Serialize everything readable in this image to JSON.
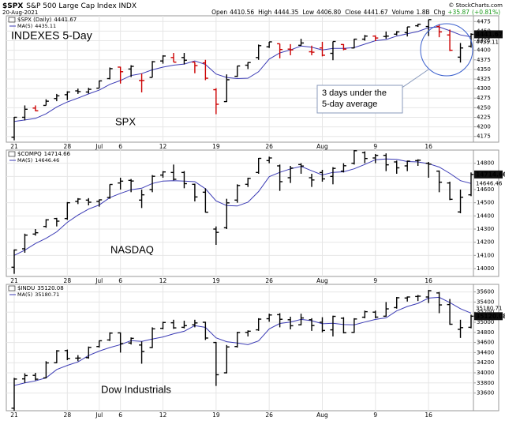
{
  "header": {
    "symbol": "$SPX",
    "name": "S&P 500 Large Cap Index INDX",
    "date": "20-Aug-2021",
    "credit": "© StockCharts.com",
    "stats": [
      {
        "label": "Open",
        "value": 4410.56
      },
      {
        "label": "High",
        "value": 4444.35
      },
      {
        "label": "Low",
        "value": {
          "value": 4406.8,
          "label": "4406.80"
        }
      },
      {
        "label": "Close",
        "value": 4441.67
      },
      {
        "label": "Volume",
        "value": {
          "value": 1800000000,
          "label": "1.8B"
        }
      },
      {
        "label": "Chg",
        "value": {
          "value": 35.87,
          "label": "+35.87"
        },
        "pct": {
          "value": 0.81,
          "label": "(+0.81%)"
        },
        "color": "#1a9a1a"
      }
    ]
  },
  "chart_data": [
    {
      "type": "ohlc",
      "symbol": "$SPX (Daily)",
      "categories": [
        "21",
        null,
        null,
        null,
        null,
        "28",
        null,
        null,
        "Jul",
        null,
        "6",
        null,
        null,
        null,
        "12",
        null,
        null,
        null,
        null,
        "19",
        null,
        null,
        null,
        null,
        "26",
        null,
        null,
        null,
        null,
        "Aug",
        null,
        null,
        null,
        null,
        "9",
        null,
        null,
        null,
        null,
        "16",
        null,
        null,
        null,
        null
      ],
      "open": [
        4173,
        4225,
        4249,
        4256,
        4274,
        4284,
        4294,
        4291,
        4301,
        4326,
        4356,
        4351,
        4321,
        4329,
        4372,
        4381,
        4381,
        4369,
        4367,
        4297,
        4266,
        4332,
        4361,
        4381,
        4409,
        4417,
        4403,
        4413,
        4396,
        4406,
        4392,
        4415,
        4406,
        4429,
        4437,
        4436,
        4442,
        4446,
        4464,
        4462,
        4462,
        4440,
        4382,
        4410.56
      ],
      "high": [
        4226,
        4256,
        4256,
        4272,
        4286,
        4293,
        4300,
        4302,
        4321,
        4355,
        4357,
        4361,
        4339,
        4372,
        4387,
        4393,
        4393,
        4369,
        4375,
        4301,
        4337,
        4359,
        4369,
        4415,
        4422,
        4417,
        4416,
        4430,
        4412,
        4422,
        4423,
        4416,
        4430,
        4440,
        4439,
        4449,
        4450,
        4461,
        4469,
        4480,
        4468,
        4454,
        4419,
        4444.35
      ],
      "low": [
        4165,
        4217,
        4241,
        4256,
        4267,
        4270,
        4286,
        4287,
        4301,
        4324,
        4313,
        4330,
        4290,
        4329,
        4365,
        4369,
        4363,
        4340,
        4322,
        4233,
        4265,
        4330,
        4351,
        4375,
        4406,
        4379,
        4387,
        4412,
        4387,
        4384,
        4374,
        4400,
        4405,
        4425,
        4424,
        4430,
        4439,
        4436,
        4461,
        4437,
        4434,
        4398,
        4368,
        4406.8
      ],
      "close": [
        4225,
        4246,
        4242,
        4267,
        4281,
        4291,
        4292,
        4298,
        4320,
        4352,
        4344,
        4358,
        4321,
        4370,
        4385,
        4369,
        4374,
        4360,
        4327,
        4259,
        4323,
        4359,
        4368,
        4412,
        4422,
        4402,
        4401,
        4419,
        4395,
        4387,
        4423,
        4403,
        4429,
        4437,
        4432,
        4437,
        4448,
        4461,
        4468,
        4480,
        4448,
        4400,
        4406,
        4441.67
      ],
      "up_color": "#000000",
      "down_color": "#cc0000",
      "ma": {
        "name": "MA(5)",
        "color": "#3b3bb5",
        "values": [
          4214,
          4218,
          4222,
          4234,
          4252,
          4265,
          4275,
          4286,
          4296,
          4311,
          4321,
          4334,
          4339,
          4349,
          4356,
          4361,
          4364,
          4372,
          4363,
          4338,
          4329,
          4326,
          4327,
          4344,
          4377,
          4393,
          4401,
          4411,
          4408,
          4401,
          4405,
          4405,
          4407,
          4416,
          4425,
          4428,
          4437,
          4443,
          4449,
          4459,
          4461,
          4451,
          4440,
          4435.11
        ]
      },
      "ylim": [
        4160,
        4490
      ],
      "yticks": [
        4175,
        4200,
        4225,
        4250,
        4275,
        4300,
        4325,
        4350,
        4375,
        4400,
        4425,
        4450,
        4475
      ],
      "grid": true,
      "annotations": [
        {
          "text": "INDEXES 5-Day",
          "color": "#dd1111"
        },
        {
          "text": "SPX",
          "color": "#1a1acc"
        }
      ],
      "callout": [
        "3 days under the",
        "5-day average"
      ]
    },
    {
      "type": "ohlc",
      "symbol": "$COMPQ",
      "categories": [
        "21",
        null,
        null,
        null,
        null,
        "28",
        null,
        null,
        "Jul",
        null,
        "6",
        null,
        null,
        null,
        "12",
        null,
        null,
        null,
        null,
        "19",
        null,
        null,
        null,
        null,
        "26",
        null,
        null,
        null,
        null,
        "Aug",
        null,
        null,
        null,
        null,
        "9",
        null,
        null,
        null,
        null,
        "16",
        null,
        null,
        null,
        null
      ],
      "open": [
        14010,
        14150,
        14262,
        14320,
        14380,
        14380,
        14510,
        14520,
        14510,
        14540,
        14650,
        14670,
        14520,
        14600,
        14710,
        14730,
        14730,
        14640,
        14580,
        14300,
        14310,
        14520,
        14640,
        14730,
        14820,
        14780,
        14690,
        14790,
        14690,
        14730,
        14700,
        14740,
        14800,
        14880,
        14840,
        14860,
        14810,
        14780,
        14820,
        14800,
        14740,
        14650,
        14430,
        14560
      ],
      "high": [
        14145,
        14265,
        14300,
        14375,
        14385,
        14505,
        14535,
        14535,
        14525,
        14640,
        14690,
        14680,
        14600,
        14710,
        14740,
        14790,
        14740,
        14645,
        14610,
        14320,
        14530,
        14640,
        14690,
        14840,
        14850,
        14790,
        14780,
        14800,
        14720,
        14750,
        14770,
        14800,
        14900,
        14890,
        14870,
        14875,
        14820,
        14820,
        14830,
        14810,
        14745,
        14660,
        14600,
        14730
      ],
      "low": [
        13960,
        14120,
        14250,
        14310,
        14320,
        14370,
        14490,
        14480,
        14470,
        14530,
        14600,
        14580,
        14460,
        14580,
        14690,
        14670,
        14610,
        14510,
        14425,
        14180,
        14300,
        14500,
        14620,
        14720,
        14800,
        14590,
        14650,
        14720,
        14620,
        14660,
        14640,
        14730,
        14790,
        14800,
        14800,
        14740,
        14720,
        14740,
        14780,
        14690,
        14580,
        14520,
        14420,
        14550
      ],
      "close": [
        14141,
        14254,
        14272,
        14370,
        14360,
        14500,
        14528,
        14504,
        14522,
        14639,
        14664,
        14665,
        14560,
        14701,
        14734,
        14678,
        14645,
        14544,
        14428,
        14275,
        14499,
        14631,
        14685,
        14837,
        14840,
        14660,
        14763,
        14779,
        14673,
        14681,
        14761,
        14781,
        14895,
        14836,
        14860,
        14788,
        14765,
        14816,
        14823,
        14793,
        14656,
        14526,
        14542,
        14714.66
      ],
      "up_color": "#000000",
      "down_color": "#000000",
      "ma": {
        "name": "MA(5)",
        "color": "#3b3bb5",
        "values": [
          14100,
          14140,
          14190,
          14230,
          14279,
          14351,
          14406,
          14452,
          14483,
          14539,
          14571,
          14599,
          14610,
          14646,
          14665,
          14668,
          14664,
          14660,
          14606,
          14514,
          14478,
          14475,
          14504,
          14585,
          14698,
          14731,
          14757,
          14776,
          14743,
          14711,
          14731,
          14735,
          14758,
          14791,
          14827,
          14832,
          14829,
          14813,
          14810,
          14797,
          14771,
          14723,
          14668,
          14646.46
        ]
      },
      "ylim": [
        13940,
        14900
      ],
      "yticks": [
        14000,
        14100,
        14200,
        14300,
        14400,
        14500,
        14600,
        14700,
        14800
      ],
      "grid": true,
      "annotations": [
        {
          "text": "NASDAQ",
          "color": "#1a1acc"
        }
      ]
    },
    {
      "type": "ohlc",
      "symbol": "$INDU",
      "categories": [
        "21",
        null,
        null,
        null,
        null,
        "28",
        null,
        null,
        "Jul",
        null,
        "6",
        null,
        null,
        null,
        "12",
        null,
        null,
        null,
        null,
        "19",
        null,
        null,
        null,
        null,
        "26",
        null,
        null,
        null,
        null,
        "Aug",
        null,
        null,
        null,
        null,
        "9",
        null,
        null,
        null,
        null,
        "16",
        null,
        null,
        null,
        null
      ],
      "open": [
        33300,
        33880,
        33950,
        33900,
        34200,
        34440,
        34290,
        34300,
        34520,
        34650,
        34790,
        34590,
        34550,
        34500,
        34880,
        34990,
        34900,
        34950,
        35000,
        34600,
        34000,
        34520,
        34800,
        34850,
        35070,
        35150,
        35050,
        34950,
        35050,
        35000,
        34850,
        35080,
        34800,
        35100,
        35200,
        35120,
        35290,
        35480,
        35510,
        35500,
        35580,
        35350,
        34860,
        34900
      ],
      "high": [
        33900,
        33990,
        34000,
        34230,
        34450,
        34460,
        34350,
        34520,
        34640,
        34800,
        34800,
        34700,
        34620,
        34900,
        35010,
        35050,
        35030,
        35050,
        35010,
        34610,
        34550,
        34810,
        34840,
        35080,
        35170,
        35180,
        35110,
        35170,
        35080,
        35100,
        35130,
        35100,
        35080,
        35230,
        35230,
        35400,
        35500,
        35510,
        35540,
        35640,
        35600,
        35460,
        35050,
        35150
      ],
      "low": [
        33250,
        33800,
        33850,
        33890,
        34190,
        34250,
        34230,
        34280,
        34500,
        34630,
        34400,
        34560,
        34180,
        34490,
        34860,
        34870,
        34880,
        34900,
        34650,
        33740,
        33990,
        34500,
        34720,
        34830,
        35010,
        34900,
        34860,
        34940,
        34830,
        34800,
        34720,
        34780,
        34790,
        35080,
        35080,
        35110,
        35270,
        35410,
        35420,
        35380,
        35180,
        34950,
        34690,
        34880
      ],
      "close": [
        33877,
        33946,
        33874,
        34196,
        34434,
        34283,
        34292,
        34503,
        34634,
        34786,
        34577,
        34682,
        34422,
        34870,
        34996,
        34889,
        34933,
        34987,
        34688,
        33962,
        34512,
        34798,
        34823,
        35062,
        35144,
        35059,
        34931,
        35085,
        34935,
        34838,
        35117,
        34793,
        35065,
        35209,
        35102,
        35265,
        35485,
        35500,
        35516,
        35625,
        35343,
        34961,
        34894,
        35120.08
      ],
      "up_color": "#000000",
      "down_color": "#000000",
      "ma": {
        "name": "MA(5)",
        "color": "#3b3bb5",
        "values": [
          33750,
          33800,
          33840,
          33900,
          34065,
          34147,
          34216,
          34342,
          34429,
          34500,
          34558,
          34636,
          34620,
          34667,
          34709,
          34772,
          34822,
          34935,
          34899,
          34692,
          34616,
          34589,
          34557,
          34631,
          34868,
          34977,
          35004,
          35056,
          35031,
          34970,
          34981,
          34954,
          34950,
          35004,
          35057,
          35087,
          35225,
          35312,
          35374,
          35478,
          35494,
          35389,
          35268,
          35180.71
        ]
      },
      "ylim": [
        33250,
        35750
      ],
      "yticks": [
        33600,
        33800,
        34000,
        34200,
        34400,
        34600,
        34800,
        35000,
        35200,
        35400,
        35600
      ],
      "grid": true,
      "annotations": [
        {
          "text": "Dow Industrials",
          "color": "#1a1acc"
        }
      ]
    }
  ]
}
